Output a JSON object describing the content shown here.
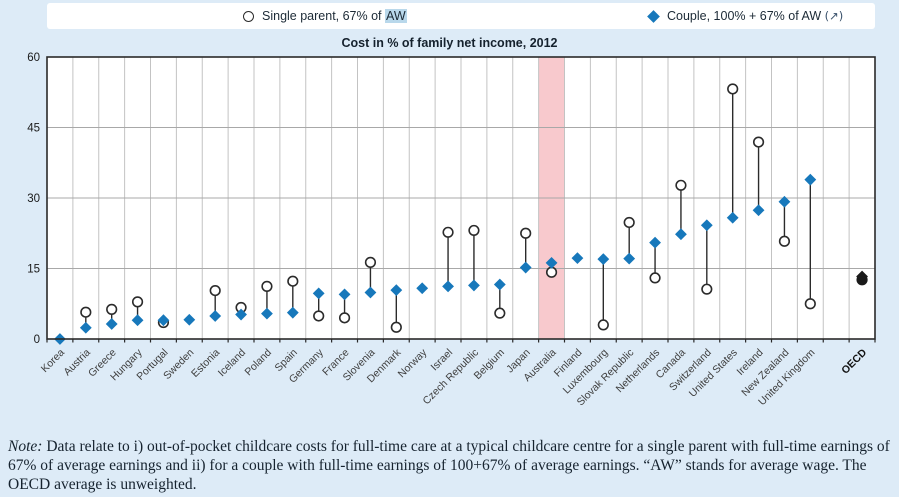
{
  "page": {
    "background": "#ddebf7"
  },
  "legend": {
    "single": {
      "prefix": "Single parent, 67% of ",
      "highlight": "AW",
      "highlight_color": "#b9d8eb"
    },
    "couple": {
      "label": "Couple, 100% + 67% of AW",
      "suffix": "(↗)"
    }
  },
  "title": "Cost in % of family net income, 2012",
  "note": {
    "label": "Note:",
    "text": "  Data relate to i) out-of-pocket childcare costs for full-time care at a typical childcare centre for a single parent with full-time earnings of 67% of average earnings and ii) for a couple with full-time earnings of 100+67% of average earnings. “AW” stands for average wage. The OECD average is unweighted."
  },
  "chart_data": {
    "type": "scatter",
    "title": "Cost in % of family net income, 2012",
    "xlabel": "",
    "ylabel": "Cost in % of family net income",
    "ylim": [
      0,
      60
    ],
    "yticks": [
      0,
      15,
      30,
      45,
      60
    ],
    "grid": true,
    "legend_position": "top",
    "series_names": [
      "Single parent, 67% of AW",
      "Couple, 100% + 67% of AW"
    ],
    "colors": {
      "couple_fill": "#1778bb",
      "single_fill": "#ffffff",
      "marker_stroke": "#2b2b2b",
      "oecd_fill": "#1a1a1a",
      "grid_line": "#c3c3c3",
      "frame": "#2a2a2a",
      "tick_label": "#1a1a1a",
      "country_label": "#3f3f3f",
      "highlight_band": "#f8c9cd"
    },
    "highlight_country": "Australia",
    "points": [
      {
        "country": "Korea",
        "single": 0,
        "couple": 0
      },
      {
        "country": "Austria",
        "single": 5.7,
        "couple": 2.4
      },
      {
        "country": "Greece",
        "single": 6.3,
        "couple": 3.2
      },
      {
        "country": "Hungary",
        "single": 7.9,
        "couple": 4.0
      },
      {
        "country": "Portugal",
        "single": 3.5,
        "couple": 4.0
      },
      {
        "country": "Sweden",
        "single": 4.1,
        "couple": 4.1
      },
      {
        "country": "Estonia",
        "single": 10.3,
        "couple": 4.9
      },
      {
        "country": "Iceland",
        "single": 6.7,
        "couple": 5.2
      },
      {
        "country": "Poland",
        "single": 11.2,
        "couple": 5.4
      },
      {
        "country": "Spain",
        "single": 12.3,
        "couple": 5.6
      },
      {
        "country": "Germany",
        "single": 4.9,
        "couple": 9.7
      },
      {
        "country": "France",
        "single": 4.5,
        "couple": 9.5
      },
      {
        "country": "Slovenia",
        "single": 16.3,
        "couple": 9.9
      },
      {
        "country": "Denmark",
        "single": 2.5,
        "couple": 10.4
      },
      {
        "country": "Norway",
        "single": 10.8,
        "couple": 10.8
      },
      {
        "country": "Israel",
        "single": 22.7,
        "couple": 11.2
      },
      {
        "country": "Czech Republic",
        "single": 23.1,
        "couple": 11.4
      },
      {
        "country": "Belgium",
        "single": 5.5,
        "couple": 11.6
      },
      {
        "country": "Japan",
        "single": 22.5,
        "couple": 15.2
      },
      {
        "country": "Australia",
        "single": 14.2,
        "couple": 16.2
      },
      {
        "country": "Finland",
        "single": 17.2,
        "couple": 17.2
      },
      {
        "country": "Luxembourg",
        "single": 3.0,
        "couple": 17.0
      },
      {
        "country": "Slovak Republic",
        "single": 24.8,
        "couple": 17.1
      },
      {
        "country": "Netherlands",
        "single": 13.0,
        "couple": 20.5
      },
      {
        "country": "Canada",
        "single": 32.7,
        "couple": 22.3
      },
      {
        "country": "Switzerland",
        "single": 10.6,
        "couple": 24.2
      },
      {
        "country": "United States",
        "single": 53.2,
        "couple": 25.8
      },
      {
        "country": "Ireland",
        "single": 41.9,
        "couple": 27.4
      },
      {
        "country": "New Zealand",
        "single": 20.8,
        "couple": 29.2
      },
      {
        "country": "United Kingdom",
        "single": 7.5,
        "couple": 33.9
      },
      {
        "country": "OECD",
        "single": 12.6,
        "couple": 13.3,
        "bold": true,
        "oecd": true,
        "gap_before": true
      }
    ]
  }
}
